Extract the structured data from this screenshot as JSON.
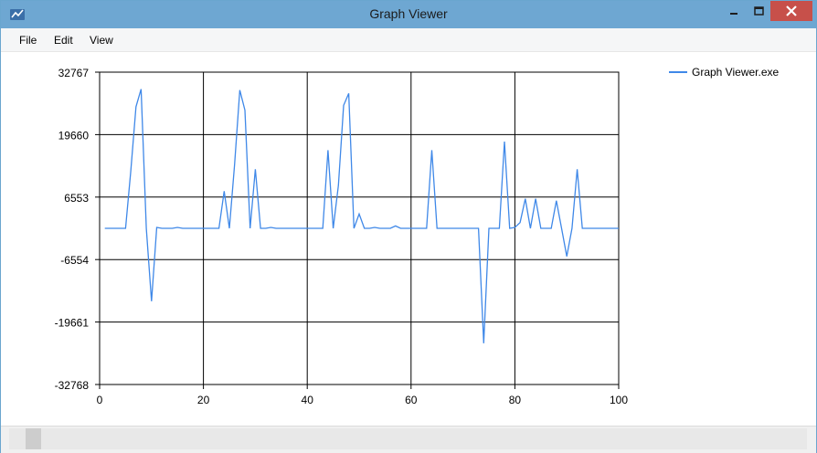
{
  "window": {
    "title": "Graph Viewer"
  },
  "menu": {
    "items": [
      "File",
      "Edit",
      "View"
    ]
  },
  "chart_data": {
    "type": "line",
    "xlim": [
      0,
      100
    ],
    "ylim": [
      -32768,
      32767
    ],
    "x_ticks": [
      0,
      20,
      40,
      60,
      80,
      100
    ],
    "y_ticks": [
      32767,
      19660,
      6553,
      -6554,
      -19661,
      -32768
    ],
    "grid": true,
    "legend_position": "top-right",
    "series": [
      {
        "name": "Graph Viewer.exe",
        "color": "#3f88e8",
        "x": [
          1,
          2,
          3,
          4,
          5,
          6,
          7,
          8,
          9,
          10,
          11,
          12,
          13,
          14,
          15,
          16,
          17,
          18,
          19,
          20,
          21,
          22,
          23,
          24,
          25,
          26,
          27,
          28,
          29,
          30,
          31,
          32,
          33,
          34,
          35,
          36,
          37,
          38,
          39,
          40,
          41,
          42,
          43,
          44,
          45,
          46,
          47,
          48,
          49,
          50,
          51,
          52,
          53,
          54,
          55,
          56,
          57,
          58,
          59,
          60,
          61,
          62,
          63,
          64,
          65,
          66,
          67,
          68,
          69,
          70,
          71,
          72,
          73,
          74,
          75,
          76,
          77,
          78,
          79,
          80,
          81,
          82,
          83,
          84,
          85,
          86,
          87,
          88,
          89,
          90,
          91,
          92,
          93,
          94,
          95,
          96,
          97,
          98,
          99,
          100
        ],
        "y": [
          0,
          0,
          0,
          0,
          0,
          12000,
          25500,
          29200,
          0,
          -15300,
          200,
          0,
          0,
          0,
          200,
          0,
          0,
          0,
          0,
          0,
          0,
          0,
          0,
          7800,
          0,
          13400,
          29000,
          24800,
          0,
          12400,
          0,
          0,
          200,
          0,
          0,
          0,
          0,
          0,
          0,
          0,
          0,
          0,
          0,
          16400,
          0,
          9000,
          25800,
          28300,
          0,
          3000,
          0,
          0,
          200,
          0,
          0,
          0,
          500,
          0,
          0,
          0,
          0,
          0,
          0,
          16400,
          0,
          0,
          0,
          0,
          0,
          0,
          0,
          0,
          0,
          -24100,
          0,
          0,
          0,
          18200,
          0,
          200,
          1200,
          6200,
          0,
          6200,
          0,
          0,
          0,
          5800,
          0,
          -5900,
          0,
          12400,
          0,
          0,
          0,
          0,
          0,
          0,
          0,
          0
        ]
      }
    ]
  }
}
